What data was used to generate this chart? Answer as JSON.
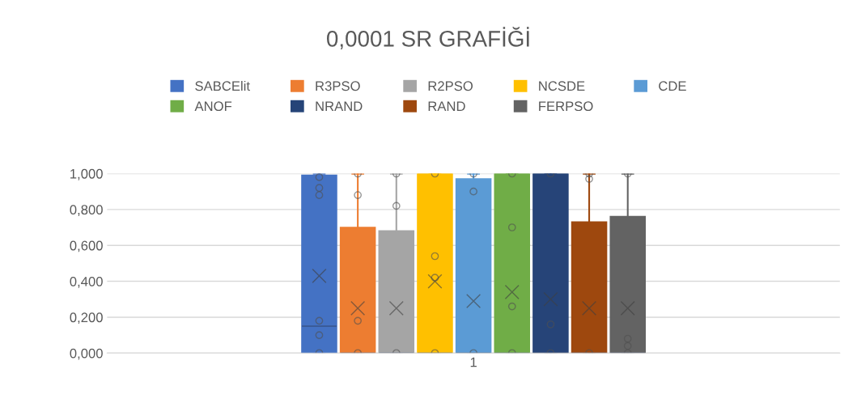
{
  "chart_data": {
    "type": "box",
    "title": "0,0001 SR GRAFİĞİ",
    "categories": [
      "1"
    ],
    "ylim": [
      0,
      1
    ],
    "yticks": [
      {
        "value": 0,
        "label": "0,000"
      },
      {
        "value": 0.2,
        "label": "0,200"
      },
      {
        "value": 0.4,
        "label": "0,400"
      },
      {
        "value": 0.6,
        "label": "0,600"
      },
      {
        "value": 0.8,
        "label": "0,800"
      },
      {
        "value": 1,
        "label": "1,000"
      }
    ],
    "grid": "y",
    "legend": "top",
    "series": [
      {
        "name": "SABCElit",
        "color": "#4472c4",
        "boxes": [
          {
            "low": 0,
            "q1": 0,
            "median": 0.15,
            "q3": 0.99,
            "high": 1,
            "mean": 0.43,
            "outliers": [
              0.98,
              0.92,
              0.88,
              0.18,
              0.1,
              0
            ]
          }
        ]
      },
      {
        "name": "R3PSO",
        "color": "#ed7d31",
        "boxes": [
          {
            "low": 0,
            "q1": 0,
            "median": 0,
            "q3": 0.7,
            "high": 1,
            "mean": 0.25,
            "outliers": [
              1,
              0.88,
              0.18,
              0
            ]
          }
        ]
      },
      {
        "name": "R2PSO",
        "color": "#a5a5a5",
        "boxes": [
          {
            "low": 0,
            "q1": 0,
            "median": 0,
            "q3": 0.68,
            "high": 1,
            "mean": 0.25,
            "outliers": [
              1,
              0.82,
              0
            ]
          }
        ]
      },
      {
        "name": "NCSDE",
        "color": "#ffc000",
        "boxes": [
          {
            "low": 0,
            "q1": 0,
            "median": 0,
            "q3": 1,
            "high": 1,
            "mean": 0.4,
            "outliers": [
              1,
              0.54,
              0.42,
              0
            ]
          }
        ]
      },
      {
        "name": "CDE",
        "color": "#5b9bd5",
        "boxes": [
          {
            "low": 0,
            "q1": 0,
            "median": 0,
            "q3": 0.97,
            "high": 1,
            "mean": 0.29,
            "outliers": [
              1,
              0.9,
              0
            ]
          }
        ]
      },
      {
        "name": "ANOF",
        "color": "#70ad47",
        "boxes": [
          {
            "low": 0,
            "q1": 0,
            "median": 0,
            "q3": 1,
            "high": 1,
            "mean": 0.34,
            "outliers": [
              1,
              0.7,
              0.26,
              0
            ]
          }
        ]
      },
      {
        "name": "NRAND",
        "color": "#264478",
        "boxes": [
          {
            "low": 0,
            "q1": 0,
            "median": 0,
            "q3": 1,
            "high": 1,
            "mean": 0.3,
            "outliers": [
              1,
              0.16,
              0
            ]
          }
        ]
      },
      {
        "name": "RAND",
        "color": "#9e480e",
        "boxes": [
          {
            "low": 0,
            "q1": 0,
            "median": 0,
            "q3": 0.73,
            "high": 1,
            "mean": 0.25,
            "outliers": [
              1,
              0.97,
              0
            ]
          }
        ]
      },
      {
        "name": "FERPSO",
        "color": "#636363",
        "boxes": [
          {
            "low": 0,
            "q1": 0,
            "median": 0,
            "q3": 0.76,
            "high": 1,
            "mean": 0.25,
            "outliers": [
              1,
              0.08,
              0.04,
              0
            ]
          }
        ]
      }
    ]
  }
}
